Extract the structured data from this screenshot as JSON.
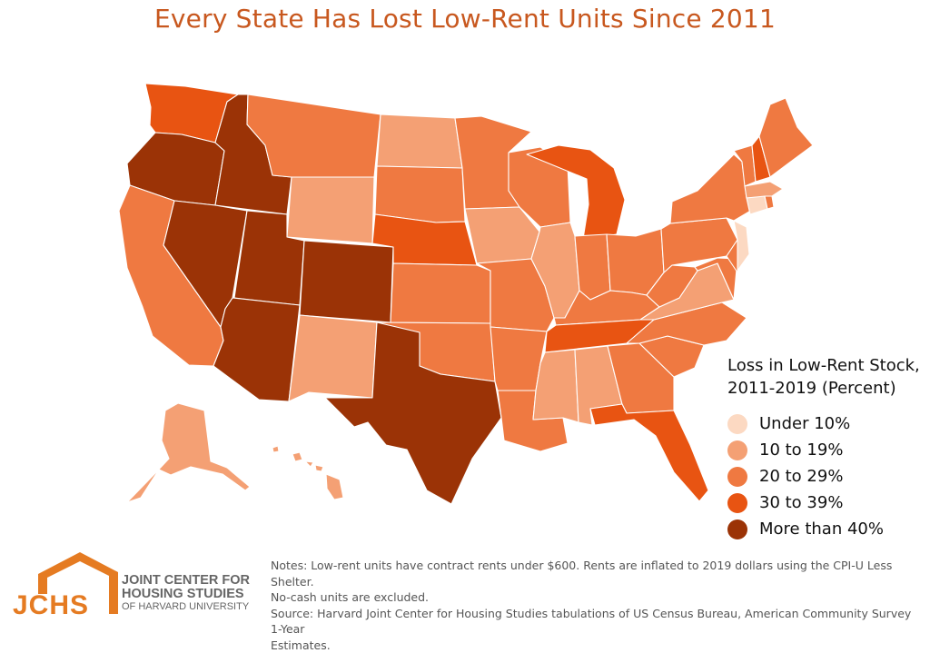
{
  "title": "Every State Has Lost Low-Rent Units Since 2011",
  "colors": {
    "title": "#c8581f",
    "under_10": "#fcd9c2",
    "r10_19": "#f4a074",
    "r20_29": "#ef7941",
    "r30_39": "#e85412",
    "over_40": "#9b3306"
  },
  "legend": {
    "title": "Loss in Low-Rent Stock, 2011-2019 (Percent)",
    "items": [
      {
        "key": "under_10",
        "label": "Under 10%"
      },
      {
        "key": "r10_19",
        "label": "10 to 19%"
      },
      {
        "key": "r20_29",
        "label": "20 to 29%"
      },
      {
        "key": "r30_39",
        "label": "30 to 39%"
      },
      {
        "key": "over_40",
        "label": "More than 40%"
      }
    ]
  },
  "state_categories": {
    "WA": "r30_39",
    "OR": "over_40",
    "CA": "r20_29",
    "ID": "over_40",
    "NV": "over_40",
    "MT": "r20_29",
    "WY": "r10_19",
    "UT": "over_40",
    "AZ": "over_40",
    "CO": "over_40",
    "NM": "r10_19",
    "ND": "r10_19",
    "SD": "r20_29",
    "NE": "r30_39",
    "KS": "r20_29",
    "OK": "r20_29",
    "TX": "over_40",
    "MN": "r20_29",
    "IA": "r10_19",
    "MO": "r20_29",
    "AR": "r20_29",
    "LA": "r20_29",
    "WI": "r20_29",
    "IL": "r10_19",
    "MI": "r30_39",
    "IN": "r20_29",
    "OH": "r20_29",
    "KY": "r20_29",
    "TN": "r30_39",
    "MS": "r10_19",
    "AL": "r10_19",
    "GA": "r20_29",
    "FL": "r30_39",
    "SC": "r20_29",
    "NC": "r20_29",
    "VA": "r10_19",
    "WV": "r20_29",
    "PA": "r20_29",
    "NY": "r20_29",
    "VT": "r20_29",
    "NH": "r30_39",
    "ME": "r20_29",
    "MA": "r10_19",
    "CT": "under_10",
    "RI": "r20_29",
    "NJ": "under_10",
    "DE": "r20_29",
    "MD": "r20_29",
    "AK": "r10_19",
    "HI": "r10_19"
  },
  "logo": {
    "abbr": "JCHS",
    "line1": "JOINT CENTER FOR",
    "line2": "HOUSING STUDIES",
    "line3": "OF HARVARD UNIVERSITY"
  },
  "notes": {
    "line1": "Notes: Low-rent units have contract rents under $600. Rents are inflated to 2019 dollars using the CPI-U Less Shelter.",
    "line2": "No-cash units are excluded.",
    "line3": "Source: Harvard Joint Center for Housing Studies tabulations of US Census Bureau, American Community Survey 1-Year",
    "line4": "Estimates."
  }
}
